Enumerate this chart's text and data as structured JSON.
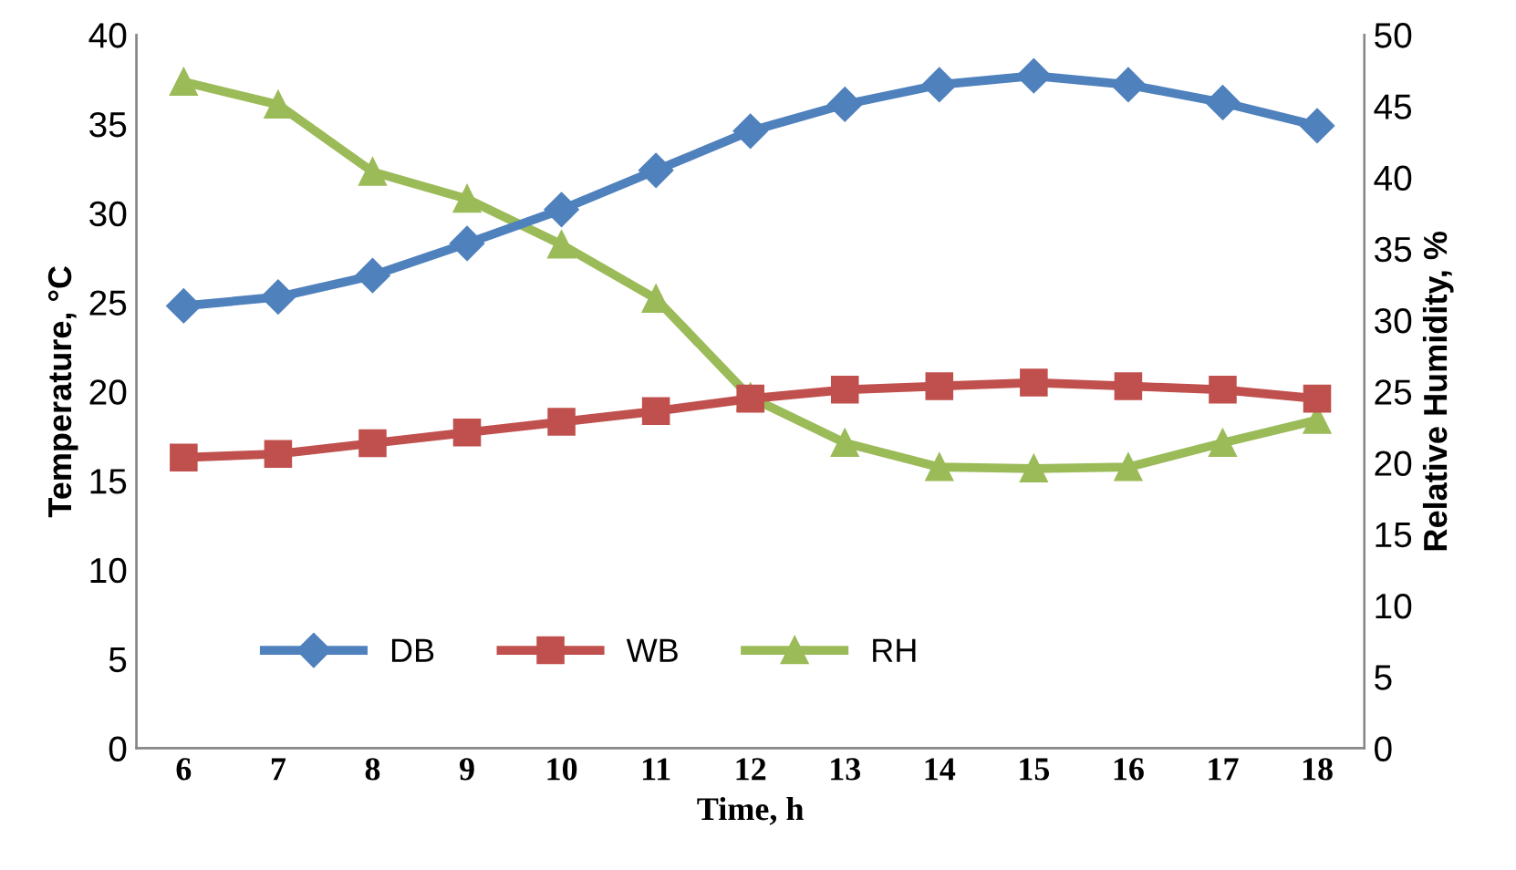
{
  "chart_data": {
    "type": "line",
    "xlabel": "Time, h",
    "ylabel": "Temperature, °C",
    "y2label": "Relative Humidity, %",
    "categories": [
      "6",
      "7",
      "8",
      "9",
      "10",
      "11",
      "12",
      "13",
      "14",
      "15",
      "16",
      "17",
      "18"
    ],
    "series": [
      {
        "name": "DB",
        "color": "#4f81bd",
        "marker": "diamond",
        "values": [
          24.8,
          25.3,
          26.5,
          28.3,
          30.2,
          32.4,
          34.6,
          36.1,
          37.2,
          37.7,
          37.2,
          36.2,
          34.9
        ]
      },
      {
        "name": "WB",
        "color": "#c0504d",
        "marker": "square",
        "values": [
          16.3,
          16.5,
          17.1,
          17.7,
          18.3,
          18.9,
          19.6,
          20.1,
          20.3,
          20.5,
          20.3,
          20.1,
          19.6
        ]
      },
      {
        "name": "RH",
        "color": "#9bbb59",
        "marker": "triangle",
        "axis": "y2",
        "values": [
          46.7,
          45.1,
          40.4,
          38.5,
          35.3,
          31.5,
          24.6,
          21.4,
          19.7,
          19.6,
          19.7,
          21.4,
          23.0
        ]
      }
    ],
    "ylim": [
      0,
      40
    ],
    "yticks": [
      0,
      5,
      10,
      15,
      20,
      25,
      30,
      35,
      40
    ],
    "y2lim": [
      0,
      50
    ],
    "y2ticks": [
      0,
      5,
      10,
      15,
      20,
      25,
      30,
      35,
      40,
      45,
      50
    ],
    "legend": "bottom left",
    "grid": false
  }
}
